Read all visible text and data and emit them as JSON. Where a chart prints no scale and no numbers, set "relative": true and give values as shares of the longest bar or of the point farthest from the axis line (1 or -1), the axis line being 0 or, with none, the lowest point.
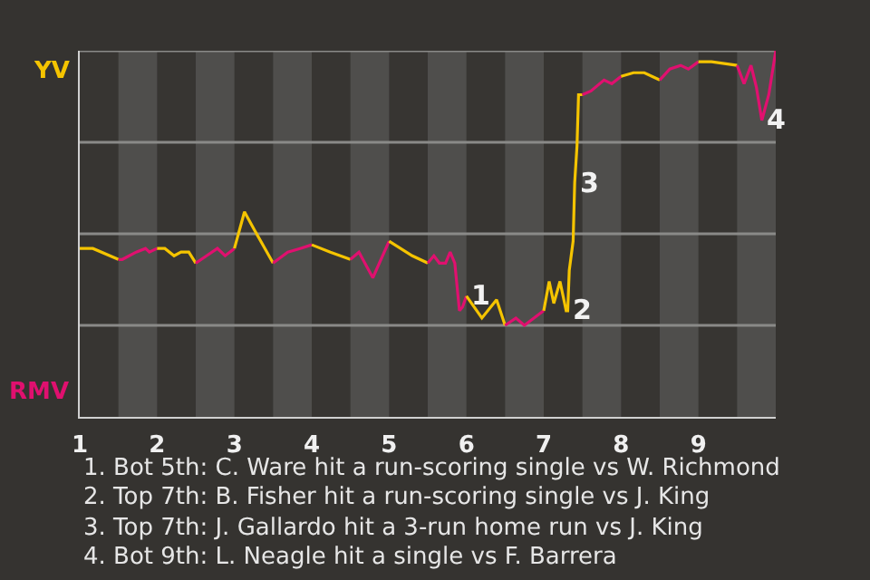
{
  "chart_data": {
    "type": "line",
    "relative": true,
    "xlim": [
      1,
      10
    ],
    "xticks": [
      1,
      2,
      3,
      4,
      5,
      6,
      7,
      8,
      9
    ],
    "series": [
      {
        "name": "YV",
        "color": "#f5c400",
        "x": [
          1,
          1.17,
          1.5
        ],
        "values": [
          0.46,
          0.46,
          0.43
        ]
      },
      {
        "name": "RMV",
        "color": "#e0106f",
        "x": [
          1.5,
          1.55,
          1.73,
          1.85,
          1.9,
          2
        ],
        "values": [
          0.43,
          0.43,
          0.45,
          0.46,
          0.45,
          0.46
        ]
      },
      {
        "color": "#f5c400",
        "x": [
          2,
          2.1,
          2.22,
          2.31,
          2.41,
          2.5
        ],
        "values": [
          0.46,
          0.46,
          0.44,
          0.45,
          0.45,
          0.42
        ]
      },
      {
        "color": "#e0106f",
        "x": [
          2.5,
          2.64,
          2.78,
          2.88,
          3
        ],
        "values": [
          0.42,
          0.44,
          0.46,
          0.44,
          0.46
        ]
      },
      {
        "color": "#f5c400",
        "x": [
          3,
          3.13,
          3.26,
          3.5
        ],
        "values": [
          0.46,
          0.56,
          0.51,
          0.42
        ]
      },
      {
        "color": "#e0106f",
        "x": [
          3.5,
          3.69,
          3.85,
          4
        ],
        "values": [
          0.42,
          0.45,
          0.46,
          0.47
        ]
      },
      {
        "color": "#f5c400",
        "x": [
          4,
          4.24,
          4.5
        ],
        "values": [
          0.47,
          0.45,
          0.43
        ]
      },
      {
        "color": "#e0106f",
        "x": [
          4.5,
          4.61,
          4.79,
          5
        ],
        "values": [
          0.43,
          0.45,
          0.38,
          0.48
        ]
      },
      {
        "color": "#f5c400",
        "x": [
          5,
          5.3,
          5.5
        ],
        "values": [
          0.48,
          0.44,
          0.42
        ]
      },
      {
        "color": "#e0106f",
        "x": [
          5.5,
          5.58,
          5.65,
          5.73,
          5.79,
          5.85,
          5.91,
          5.95,
          6
        ],
        "values": [
          0.42,
          0.44,
          0.42,
          0.42,
          0.45,
          0.42,
          0.29,
          0.3,
          0.33
        ]
      },
      {
        "color": "#f5c400",
        "x": [
          6,
          6.2,
          6.39,
          6.5
        ],
        "values": [
          0.33,
          0.27,
          0.32,
          0.25
        ]
      },
      {
        "color": "#e0106f",
        "x": [
          6.5,
          6.64,
          6.75,
          7
        ],
        "values": [
          0.25,
          0.27,
          0.25,
          0.29
        ]
      },
      {
        "color": "#f5c400",
        "x": [
          7,
          7.07,
          7.13,
          7.21,
          7.29,
          7.31,
          7.33,
          7.38,
          7.4,
          7.43,
          7.45,
          7.5
        ],
        "values": [
          0.29,
          0.37,
          0.31,
          0.37,
          0.29,
          0.29,
          0.4,
          0.48,
          0.64,
          0.74,
          0.88,
          0.88
        ]
      },
      {
        "color": "#e0106f",
        "x": [
          7.5,
          7.61,
          7.78,
          7.88,
          8
        ],
        "values": [
          0.88,
          0.89,
          0.92,
          0.91,
          0.93
        ]
      },
      {
        "color": "#f5c400",
        "x": [
          8,
          8.16,
          8.3,
          8.5
        ],
        "values": [
          0.93,
          0.94,
          0.94,
          0.92
        ]
      },
      {
        "color": "#e0106f",
        "x": [
          8.5,
          8.63,
          8.77,
          8.87,
          9
        ],
        "values": [
          0.92,
          0.95,
          0.96,
          0.95,
          0.97
        ]
      },
      {
        "color": "#f5c400",
        "x": [
          9,
          9.17,
          9.5
        ],
        "values": [
          0.97,
          0.97,
          0.96
        ]
      },
      {
        "color": "#e0106f",
        "x": [
          9.5,
          9.59,
          9.68,
          9.75,
          9.82,
          9.91,
          10
        ],
        "values": [
          0.96,
          0.91,
          0.96,
          0.9,
          0.81,
          0.88,
          1
        ]
      }
    ],
    "bands": [
      {
        "axis": "x",
        "from": 1.5,
        "to": 2,
        "color": "#4f4e4c"
      },
      {
        "axis": "x",
        "from": 2.5,
        "to": 3,
        "color": "#4f4e4c"
      },
      {
        "axis": "x",
        "from": 3.5,
        "to": 4,
        "color": "#4f4e4c"
      },
      {
        "axis": "x",
        "from": 4.5,
        "to": 5,
        "color": "#4f4e4c"
      },
      {
        "axis": "x",
        "from": 5.5,
        "to": 6,
        "color": "#4f4e4c"
      },
      {
        "axis": "x",
        "from": 6.5,
        "to": 7,
        "color": "#4f4e4c"
      },
      {
        "axis": "x",
        "from": 7.5,
        "to": 8,
        "color": "#4f4e4c"
      },
      {
        "axis": "x",
        "from": 8.5,
        "to": 9,
        "color": "#4f4e4c"
      },
      {
        "axis": "x",
        "from": 9.5,
        "to": 10,
        "color": "#4f4e4c"
      }
    ],
    "ref_lines": [
      {
        "axis": "y",
        "value": 0.25,
        "color": "#8a8a88"
      },
      {
        "axis": "y",
        "value": 0.5,
        "color": "#8a8a88"
      },
      {
        "axis": "y",
        "value": 0.75,
        "color": "#8a8a88"
      },
      {
        "axis": "y",
        "value": 1,
        "color": "#8a8a88"
      }
    ],
    "annotations": [
      {
        "text": "1",
        "x": 6,
        "y": 0.33
      },
      {
        "text": "2",
        "x": 7.31,
        "y": 0.29
      },
      {
        "text": "3",
        "x": 7.4,
        "y": 0.64
      },
      {
        "text": "4",
        "x": 9.82,
        "y": 0.81
      },
      "1. Bot 5th: C. Ware hit a run-scoring single vs W. Richmond",
      "2. Top 7th: B. Fisher hit a run-scoring single vs J. King",
      "3. Top 7th: J. Gallardo hit a 3-run home run vs J. King",
      "4. Bot 9th: L. Neagle hit a single vs F. Barrera"
    ],
    "legend": false
  }
}
